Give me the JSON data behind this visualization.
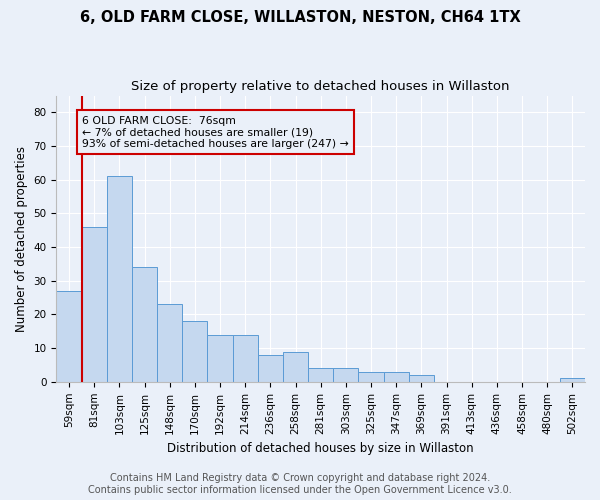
{
  "title": "6, OLD FARM CLOSE, WILLASTON, NESTON, CH64 1TX",
  "subtitle": "Size of property relative to detached houses in Willaston",
  "xlabel": "Distribution of detached houses by size in Willaston",
  "ylabel": "Number of detached properties",
  "categories": [
    "59sqm",
    "81sqm",
    "103sqm",
    "125sqm",
    "148sqm",
    "170sqm",
    "192sqm",
    "214sqm",
    "236sqm",
    "258sqm",
    "281sqm",
    "303sqm",
    "325sqm",
    "347sqm",
    "369sqm",
    "391sqm",
    "413sqm",
    "436sqm",
    "458sqm",
    "480sqm",
    "502sqm"
  ],
  "values": [
    27,
    46,
    61,
    34,
    23,
    18,
    14,
    14,
    8,
    9,
    4,
    4,
    3,
    3,
    2,
    0,
    0,
    0,
    0,
    0,
    1
  ],
  "bar_color": "#c5d8ef",
  "bar_edge_color": "#5b9bd5",
  "annotation_line_color": "#cc0000",
  "annotation_box_color": "#cc0000",
  "annotation_line1": "6 OLD FARM CLOSE:  76sqm",
  "annotation_line2": "← 7% of detached houses are smaller (19)",
  "annotation_line3": "93% of semi-detached houses are larger (247) →",
  "ylim": [
    0,
    85
  ],
  "yticks": [
    0,
    10,
    20,
    30,
    40,
    50,
    60,
    70,
    80
  ],
  "footer_line1": "Contains HM Land Registry data © Crown copyright and database right 2024.",
  "footer_line2": "Contains public sector information licensed under the Open Government Licence v3.0.",
  "background_color": "#eaf0f9",
  "grid_color": "#ffffff",
  "title_fontsize": 10.5,
  "subtitle_fontsize": 9.5,
  "axis_label_fontsize": 8.5,
  "tick_fontsize": 7.5,
  "footer_fontsize": 7
}
